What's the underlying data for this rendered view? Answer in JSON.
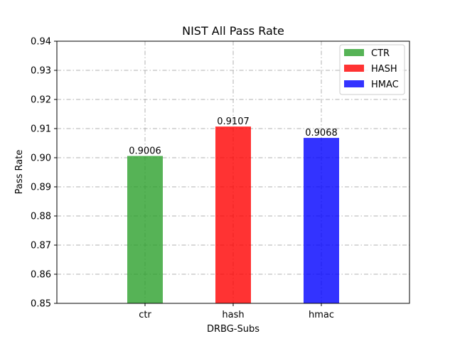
{
  "chart_data": {
    "type": "bar",
    "title": "NIST All Pass Rate",
    "xlabel": "DRBG-Subs",
    "ylabel": "Pass Rate",
    "categories": [
      "ctr",
      "hash",
      "hmac"
    ],
    "series": [
      {
        "name": "CTR",
        "category": "ctr",
        "value": 0.9006,
        "label": "0.9006",
        "color": "#2ca02c"
      },
      {
        "name": "HASH",
        "category": "hash",
        "value": 0.9107,
        "label": "0.9107",
        "color": "#ff0000"
      },
      {
        "name": "HMAC",
        "category": "hmac",
        "value": 0.9068,
        "label": "0.9068",
        "color": "#0000ff"
      }
    ],
    "ylim": [
      0.85,
      0.94
    ],
    "yticks": [
      "0.85",
      "0.86",
      "0.87",
      "0.88",
      "0.89",
      "0.90",
      "0.91",
      "0.92",
      "0.93",
      "0.94"
    ],
    "grid": true,
    "legend_position": "top-right"
  }
}
